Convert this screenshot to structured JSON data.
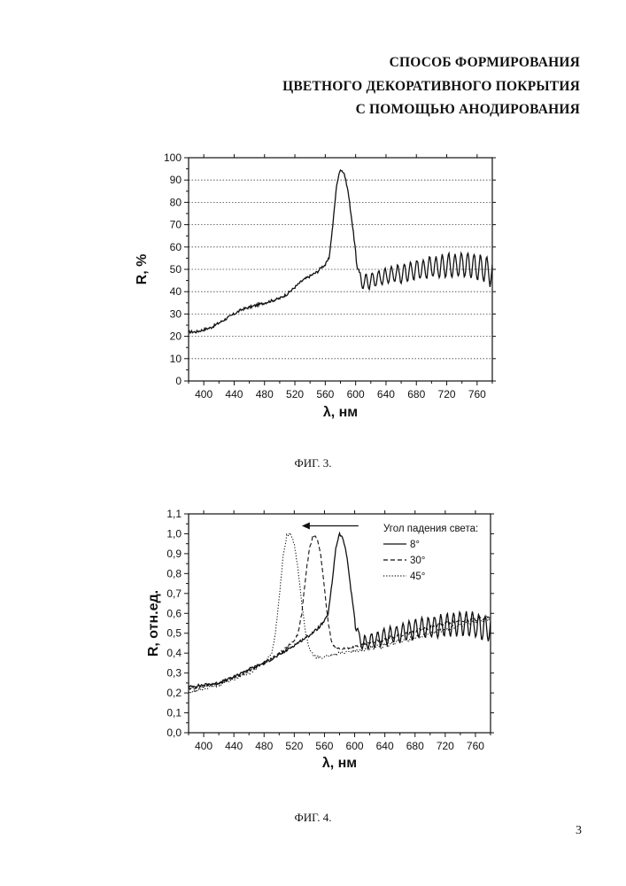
{
  "document": {
    "title_lines": [
      "СПОСОБ ФОРМИРОВАНИЯ",
      "ЦВЕТНОГО ДЕКОРАТИВНОГО ПОКРЫТИЯ",
      "С ПОМОЩЬЮ АНОДИРОВАНИЯ"
    ],
    "page_number": "3"
  },
  "chart_data": [
    {
      "type": "line",
      "caption": "ФИГ. 3.",
      "xlabel": "λ, нм",
      "ylabel": "R, %",
      "xlim": [
        380,
        780
      ],
      "ylim": [
        0,
        100
      ],
      "xticks": [
        400,
        440,
        480,
        520,
        560,
        600,
        640,
        680,
        720,
        760
      ],
      "yticks": [
        0,
        10,
        20,
        30,
        40,
        50,
        60,
        70,
        80,
        90,
        100
      ],
      "ytick_labels": [
        "0",
        "10",
        "20",
        "30",
        "40",
        "50",
        "60",
        "70",
        "80",
        "90",
        "100"
      ],
      "grid": "horizontal dotted",
      "series": [
        {
          "style": "solid",
          "peak": 95,
          "x": [
            380,
            390,
            400,
            410,
            420,
            430,
            440,
            450,
            460,
            470,
            480,
            490,
            500,
            510,
            520,
            530,
            540,
            550,
            555,
            560,
            565,
            570,
            575,
            580,
            585,
            590,
            595,
            600,
            605,
            610,
            620,
            630,
            640,
            650,
            660,
            670,
            680,
            690,
            700,
            710,
            720,
            730,
            740,
            750,
            760,
            770,
            780
          ],
          "y": [
            22,
            22,
            23,
            24,
            26,
            28,
            30,
            32,
            33,
            34,
            35,
            36,
            37,
            39,
            42,
            45,
            47,
            49,
            51,
            52,
            55,
            70,
            88,
            95,
            93,
            85,
            72,
            58,
            46,
            44,
            45,
            46,
            47,
            48,
            48,
            49,
            50,
            50,
            51,
            51,
            52,
            52,
            52,
            52,
            51,
            50,
            48
          ]
        }
      ]
    },
    {
      "type": "line",
      "caption": "ФИГ. 4.",
      "xlabel": "λ, нм",
      "ylabel": "R, отн.ед.",
      "xlim": [
        380,
        780
      ],
      "ylim": [
        0,
        1.1
      ],
      "xticks": [
        400,
        440,
        480,
        520,
        560,
        600,
        640,
        680,
        720,
        760
      ],
      "yticks": [
        0,
        0.1,
        0.2,
        0.3,
        0.4,
        0.5,
        0.6,
        0.7,
        0.8,
        0.9,
        1.0,
        1.1
      ],
      "ytick_labels": [
        "0,0",
        "0,1",
        "0,2",
        "0,3",
        "0,4",
        "0,5",
        "0,6",
        "0,7",
        "0,8",
        "0,9",
        "1,0",
        "1,1"
      ],
      "grid": "none",
      "legend_title": "Угол падения света:",
      "legend_position": "top-right",
      "arrow": {
        "from_x": 605,
        "to_x": 530,
        "y": 1.04
      },
      "series": [
        {
          "name": "8°",
          "style": "solid",
          "peak": 1.0,
          "x": [
            380,
            400,
            420,
            440,
            460,
            480,
            500,
            520,
            540,
            550,
            560,
            565,
            570,
            575,
            580,
            585,
            590,
            595,
            600,
            605,
            610,
            620,
            640,
            660,
            680,
            700,
            720,
            740,
            760,
            780
          ],
          "y": [
            0.23,
            0.24,
            0.25,
            0.28,
            0.32,
            0.35,
            0.39,
            0.44,
            0.49,
            0.52,
            0.56,
            0.6,
            0.75,
            0.93,
            1.0,
            0.97,
            0.88,
            0.72,
            0.58,
            0.48,
            0.45,
            0.46,
            0.48,
            0.5,
            0.52,
            0.53,
            0.54,
            0.55,
            0.54,
            0.52
          ]
        },
        {
          "name": "30°",
          "style": "dashed",
          "peak": 0.99,
          "x": [
            380,
            400,
            420,
            440,
            460,
            480,
            500,
            510,
            520,
            525,
            530,
            535,
            540,
            545,
            550,
            555,
            560,
            565,
            570,
            575,
            580,
            600,
            620,
            640,
            660,
            680,
            700,
            720,
            740,
            760,
            780
          ],
          "y": [
            0.22,
            0.23,
            0.25,
            0.28,
            0.31,
            0.35,
            0.4,
            0.43,
            0.46,
            0.5,
            0.6,
            0.78,
            0.93,
            0.99,
            0.98,
            0.9,
            0.72,
            0.55,
            0.45,
            0.43,
            0.42,
            0.43,
            0.45,
            0.47,
            0.49,
            0.51,
            0.53,
            0.55,
            0.56,
            0.57,
            0.58
          ]
        },
        {
          "name": "45°",
          "style": "dotted",
          "peak": 1.0,
          "x": [
            380,
            400,
            420,
            440,
            460,
            480,
            490,
            495,
            500,
            505,
            510,
            515,
            520,
            525,
            530,
            535,
            540,
            545,
            550,
            560,
            580,
            600,
            620,
            640,
            660,
            680,
            700,
            720,
            740,
            760,
            780
          ],
          "y": [
            0.2,
            0.22,
            0.24,
            0.27,
            0.3,
            0.35,
            0.4,
            0.5,
            0.68,
            0.88,
            0.99,
            1.0,
            0.95,
            0.82,
            0.65,
            0.5,
            0.42,
            0.39,
            0.38,
            0.38,
            0.4,
            0.41,
            0.42,
            0.44,
            0.46,
            0.48,
            0.5,
            0.52,
            0.54,
            0.56,
            0.57
          ]
        }
      ]
    }
  ]
}
